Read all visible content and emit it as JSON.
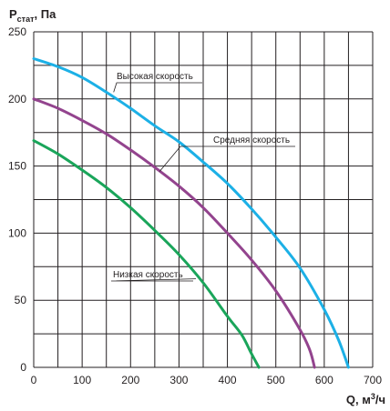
{
  "chart_data": {
    "type": "line",
    "ylabel": "P",
    "ylabel_sub": "стат",
    "ylabel_unit": ", Па",
    "xlabel_prefix": "Q, м",
    "xlabel_sup": "3",
    "xlabel_suffix": "/ч",
    "xlim": [
      0,
      700
    ],
    "ylim": [
      0,
      250
    ],
    "x_ticks": [
      0,
      100,
      200,
      300,
      400,
      500,
      600,
      700
    ],
    "y_ticks": [
      0,
      50,
      100,
      150,
      200,
      250
    ],
    "x_tick_labels": [
      "0",
      "100",
      "200",
      "300",
      "400",
      "500",
      "600",
      "700"
    ],
    "y_tick_labels": [
      "0",
      "50",
      "100",
      "150",
      "200",
      "250"
    ],
    "grid": true,
    "series": [
      {
        "name": "Высокая скорость",
        "color": "#1cb0e6",
        "x": [
          0,
          50,
          100,
          150,
          200,
          250,
          300,
          350,
          400,
          450,
          500,
          550,
          600,
          630,
          650
        ],
        "y": [
          230,
          224,
          216,
          205,
          193,
          180,
          168,
          153,
          137,
          118,
          97,
          74,
          43,
          20,
          0
        ]
      },
      {
        "name": "Средняя скорость",
        "color": "#93448e",
        "x": [
          0,
          50,
          100,
          150,
          200,
          250,
          300,
          350,
          400,
          450,
          500,
          550,
          570,
          580
        ],
        "y": [
          200,
          193,
          184,
          174,
          162,
          149,
          135,
          119,
          100,
          80,
          57,
          28,
          13,
          0
        ]
      },
      {
        "name": "Низкая скорость",
        "color": "#1aa55a",
        "x": [
          0,
          50,
          100,
          150,
          200,
          250,
          300,
          350,
          400,
          430,
          450,
          465
        ],
        "y": [
          169,
          159,
          147,
          134,
          119,
          102,
          84,
          63,
          38,
          24,
          10,
          0
        ]
      }
    ],
    "annotations": [
      {
        "text": "Высокая скорость",
        "series": 0,
        "point_x": 165,
        "point_y": 205
      },
      {
        "text": "Средняя скорость",
        "series": 1,
        "point_x": 260,
        "point_y": 146
      },
      {
        "text": "Низкая скорость",
        "series": 2,
        "point_x": 335,
        "point_y": 66
      }
    ]
  }
}
